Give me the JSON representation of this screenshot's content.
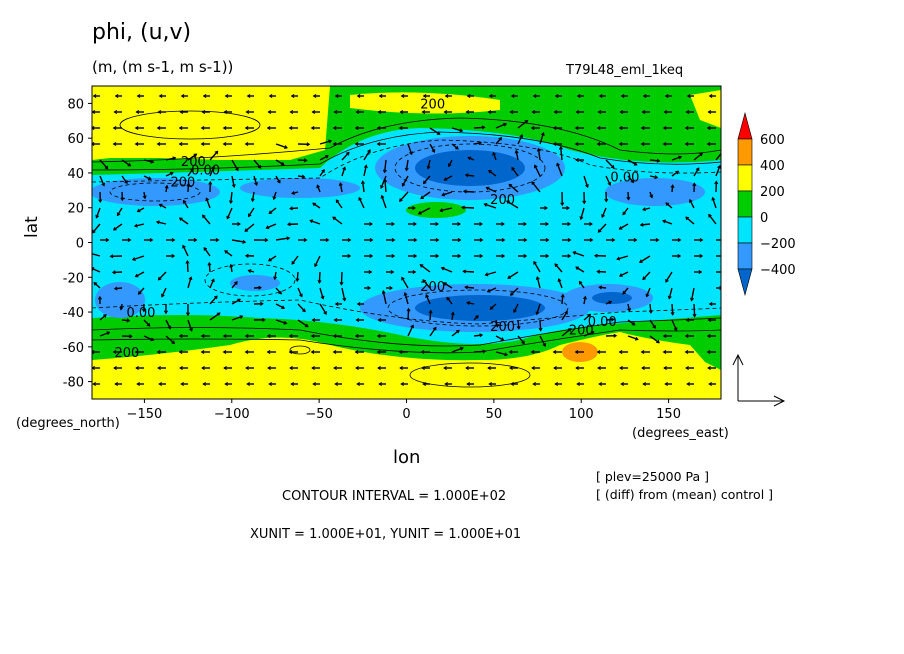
{
  "chart_data": {
    "type": "heatmap",
    "subtype": "filled-contour with wind vectors",
    "title": "phi, (u,v)",
    "units_line": "(m, (m s-1, m s-1))",
    "run_label": "T79L48_eml_1keq",
    "xlabel": "lon",
    "ylabel": "lat",
    "x_units": "(degrees_east)",
    "y_units": "(degrees_north)",
    "xlim": [
      -180,
      180
    ],
    "ylim": [
      -90,
      90
    ],
    "xticks": [
      "-150",
      "-100",
      "-50",
      "0",
      "50",
      "100",
      "150"
    ],
    "yticks": [
      "80",
      "60",
      "40",
      "20",
      "0",
      "-20",
      "-40",
      "-60",
      "-80"
    ],
    "colorbar": {
      "levels": [
        "600",
        "400",
        "200",
        "0",
        "-200",
        "-400"
      ],
      "colors": [
        "#ff0000",
        "#ff9900",
        "#ffff00",
        "#00cc00",
        "#00e5ff",
        "#3399ff",
        "#0066cc"
      ]
    },
    "contour_labels": [
      {
        "text": "200",
        "x": 15,
        "y": 80
      },
      {
        "text": "200",
        "x": -122,
        "y": 47
      },
      {
        "text": "0.00",
        "x": -115,
        "y": 42
      },
      {
        "text": "200",
        "x": -128,
        "y": 35
      },
      {
        "text": "0.00",
        "x": 125,
        "y": 38
      },
      {
        "text": "200",
        "x": 55,
        "y": 25
      },
      {
        "text": "200",
        "x": 15,
        "y": -25
      },
      {
        "text": "0.00",
        "x": -152,
        "y": -40
      },
      {
        "text": "200",
        "x": 55,
        "y": -48
      },
      {
        "text": "0.00",
        "x": 112,
        "y": -45
      },
      {
        "text": "200",
        "x": 100,
        "y": -50
      },
      {
        "text": "200",
        "x": -160,
        "y": -63
      }
    ],
    "notes": [
      "[ plev=25000 Pa ]",
      "[ (diff) from (mean) control ]"
    ],
    "contour_interval": "CONTOUR INTERVAL = 1.000E+02",
    "vector_scale": "XUNIT = 1.000E+01, YUNIT = 1.000E+01"
  },
  "colors": {
    "yellow": "#ffff00",
    "green": "#00cc00",
    "cyan": "#00e5ff",
    "blue": "#3399ff",
    "darkblue": "#0066cc",
    "orange": "#ff9900",
    "red": "#ff0000"
  }
}
